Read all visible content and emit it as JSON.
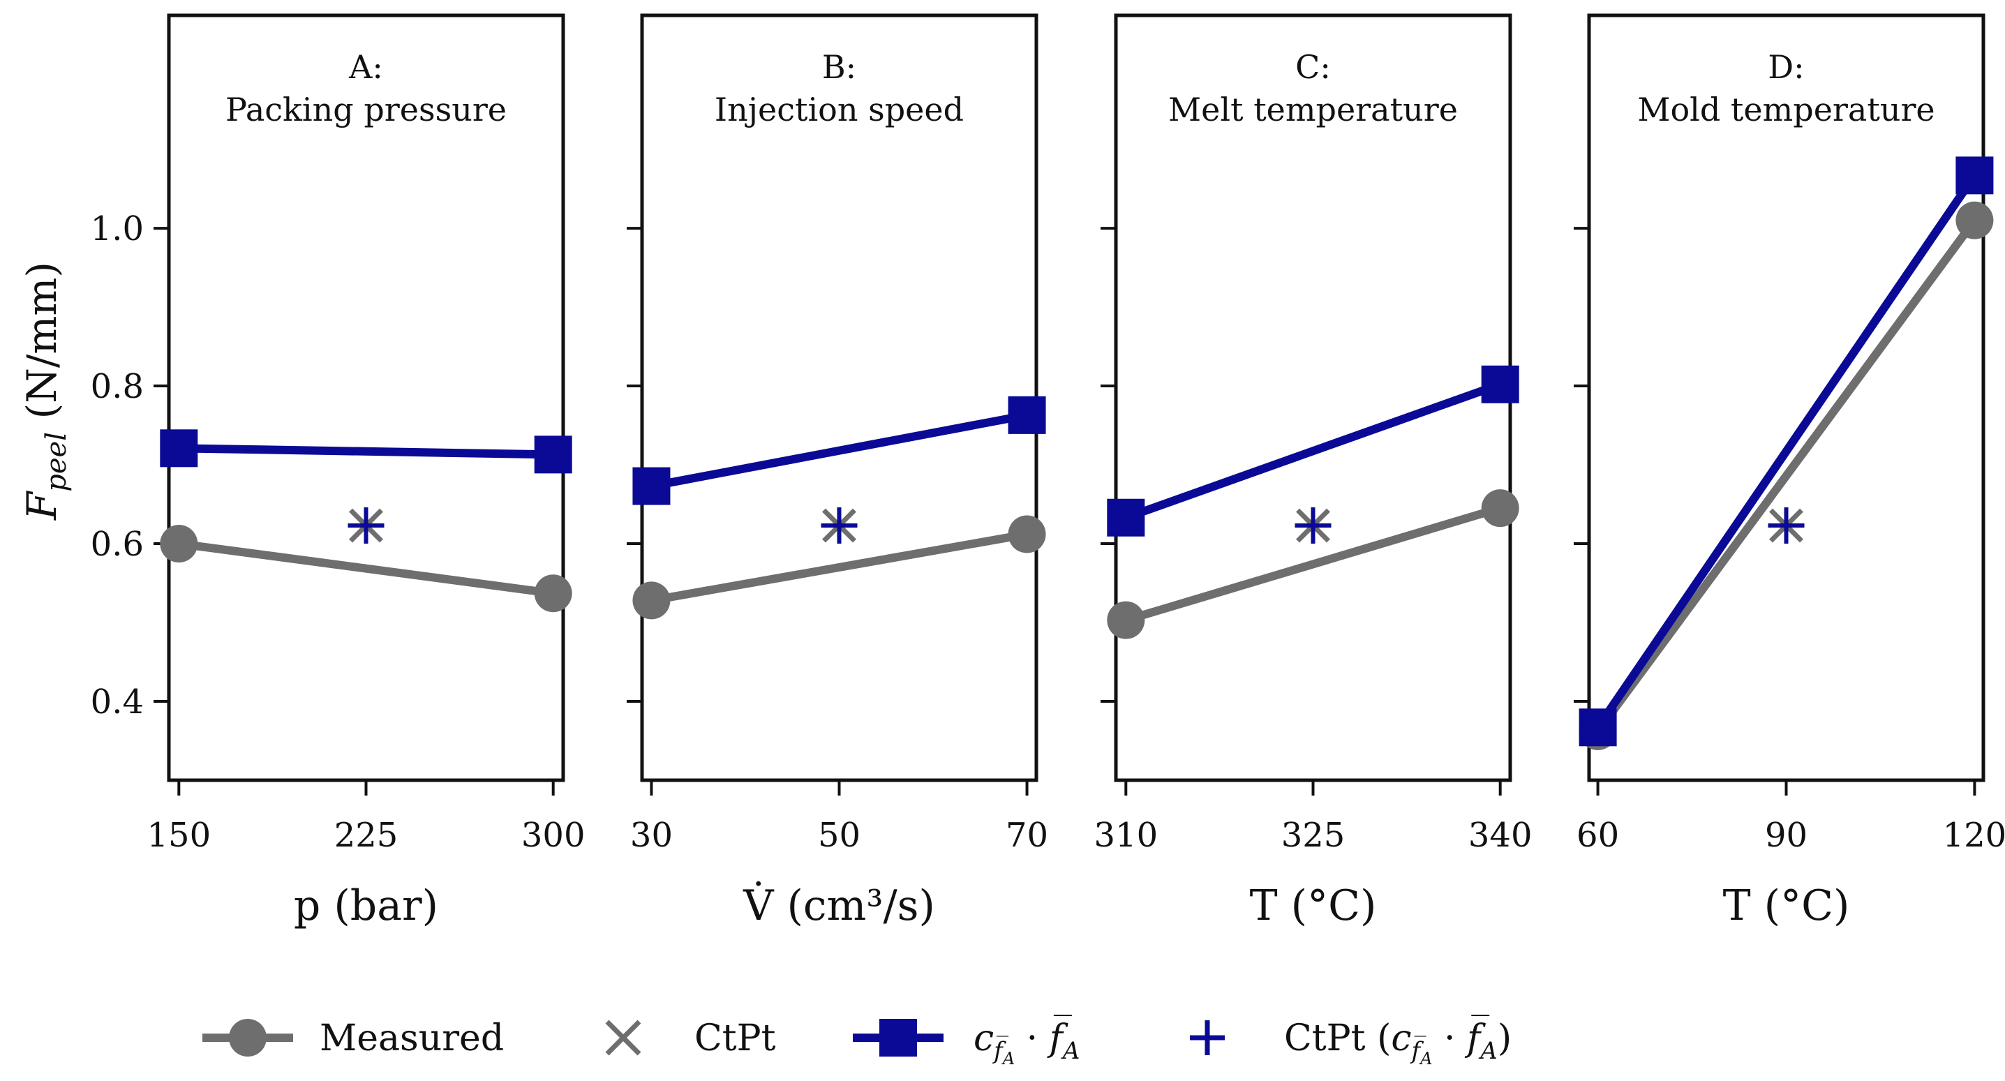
{
  "colors": {
    "measured": "#6e6e6e",
    "model": "#0a0a96",
    "axis": "#111111"
  },
  "chart_data": {
    "type": "line",
    "ylabel": {
      "main": "F",
      "sub": "peel",
      "unit": "(N/mm)"
    },
    "ylim": [
      0.3,
      1.27
    ],
    "yticks": [
      0.4,
      0.6,
      0.8,
      1.0
    ],
    "ytick_labels": [
      "0.4",
      "0.6",
      "0.8",
      "1.0"
    ],
    "panels": [
      {
        "title_letter": "A:",
        "title": "Packing pressure",
        "xlabel": "p (bar)",
        "xlim": [
          146,
          304
        ],
        "xticks": [
          150,
          225,
          300
        ],
        "xtick_labels": [
          "150",
          "225",
          "300"
        ],
        "measured": [
          {
            "x": 150,
            "y": 0.6
          },
          {
            "x": 300,
            "y": 0.537
          }
        ],
        "model": [
          {
            "x": 150,
            "y": 0.721
          },
          {
            "x": 300,
            "y": 0.713
          }
        ],
        "ctpt": {
          "x": 225,
          "y": 0.623
        },
        "ctpt_model": {
          "x": 225,
          "y": 0.623
        }
      },
      {
        "title_letter": "B:",
        "title": "Injection speed",
        "xlabel": "V̇ (cm³/s)",
        "xlim": [
          29,
          71
        ],
        "xticks": [
          30,
          50,
          70
        ],
        "xtick_labels": [
          "30",
          "50",
          "70"
        ],
        "measured": [
          {
            "x": 30,
            "y": 0.528
          },
          {
            "x": 70,
            "y": 0.612
          }
        ],
        "model": [
          {
            "x": 30,
            "y": 0.673
          },
          {
            "x": 70,
            "y": 0.763
          }
        ],
        "ctpt": {
          "x": 50,
          "y": 0.623
        },
        "ctpt_model": {
          "x": 50,
          "y": 0.623
        }
      },
      {
        "title_letter": "C:",
        "title": "Melt temperature",
        "xlabel": "T (°C)",
        "xlim": [
          309.2,
          340.8
        ],
        "xticks": [
          310,
          325,
          340
        ],
        "xtick_labels": [
          "310",
          "325",
          "340"
        ],
        "measured": [
          {
            "x": 310,
            "y": 0.503
          },
          {
            "x": 340,
            "y": 0.645
          }
        ],
        "model": [
          {
            "x": 310,
            "y": 0.633
          },
          {
            "x": 340,
            "y": 0.802
          }
        ],
        "ctpt": {
          "x": 325,
          "y": 0.623
        },
        "ctpt_model": {
          "x": 325,
          "y": 0.623
        }
      },
      {
        "title_letter": "D:",
        "title": "Mold temperature",
        "xlabel": "T (°C)",
        "xlim": [
          58.6,
          121.4
        ],
        "xticks": [
          60,
          90,
          120
        ],
        "xtick_labels": [
          "60",
          "90",
          "120"
        ],
        "measured": [
          {
            "x": 60,
            "y": 0.362
          },
          {
            "x": 120,
            "y": 1.01
          }
        ],
        "model": [
          {
            "x": 60,
            "y": 0.367
          },
          {
            "x": 120,
            "y": 1.067
          }
        ],
        "ctpt": {
          "x": 90,
          "y": 0.623
        },
        "ctpt_model": {
          "x": 90,
          "y": 0.623
        }
      }
    ],
    "legend": {
      "position": "bottom",
      "items": [
        {
          "label": "Measured",
          "marker": "circle",
          "line": true,
          "color_key": "measured"
        },
        {
          "label": "CtPt",
          "marker": "x",
          "line": false,
          "color_key": "measured"
        },
        {
          "label_c": "c",
          "label_sub": "f̅",
          "label_subsub": "A",
          "label_dot": " · ",
          "label_f": "f̅",
          "label_fsub": "A",
          "marker": "square",
          "line": true,
          "color_key": "model"
        },
        {
          "label_prefix": "CtPt (",
          "label_c": "c",
          "label_sub": "f̅",
          "label_subsub": "A",
          "label_dot": " · ",
          "label_f": "f̅",
          "label_fsub": "A",
          "label_suffix": ")",
          "marker": "plus",
          "line": false,
          "color_key": "model"
        }
      ]
    }
  }
}
